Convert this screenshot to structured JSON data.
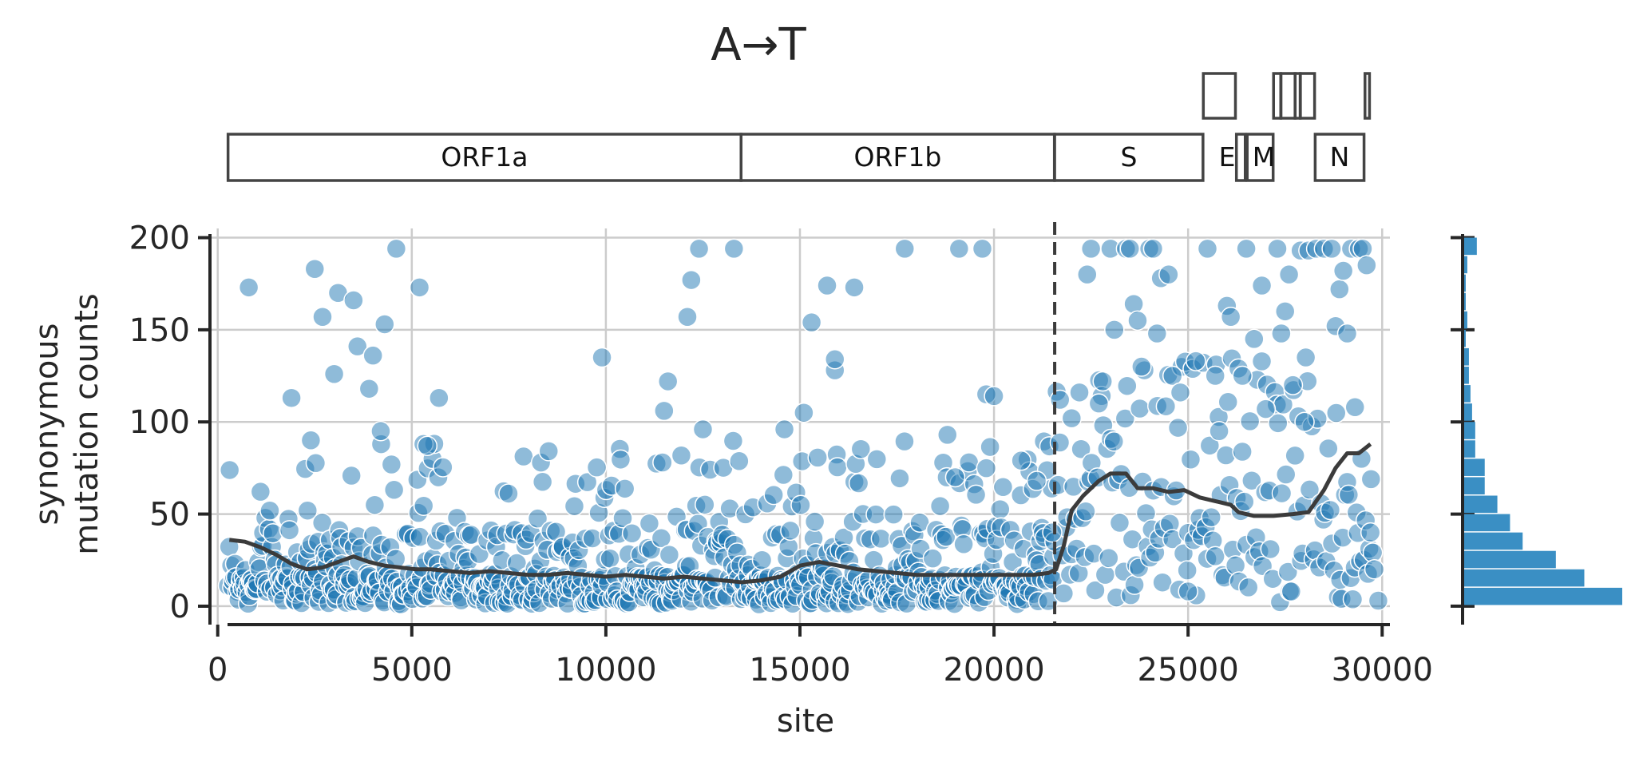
{
  "title": "A→T",
  "colors": {
    "point": "#1f77b4",
    "bar": "#3a8fc4",
    "line": "#3b3b3b",
    "grid": "#cccccc",
    "axis": "#262626",
    "genebox": "#444444"
  },
  "genes": {
    "boxes": [
      {
        "name": "ORF1a",
        "start": 266,
        "end": 13483,
        "label": "ORF1a"
      },
      {
        "name": "ORF1b",
        "start": 13483,
        "end": 21555,
        "label": "ORF1b"
      },
      {
        "name": "S",
        "start": 21563,
        "end": 25384,
        "label": "S"
      },
      {
        "name": "E",
        "start": 26245,
        "end": 26472,
        "label": "E"
      },
      {
        "name": "M",
        "start": 26523,
        "end": 27191,
        "label": "M"
      },
      {
        "name": "N",
        "start": 28274,
        "end": 29533,
        "label": "N"
      }
    ],
    "small_boxes": [
      {
        "start": 25393,
        "end": 26220
      },
      {
        "start": 27202,
        "end": 27387
      },
      {
        "start": 27394,
        "end": 27759
      },
      {
        "start": 27756,
        "end": 27887
      },
      {
        "start": 27894,
        "end": 28259
      },
      {
        "start": 29558,
        "end": 29674
      }
    ]
  },
  "chart_data": {
    "type": "scatter",
    "xlabel": "site",
    "ylabel_line1": "synonymous",
    "ylabel_line2": "mutation counts",
    "xlim": [
      -200,
      30200
    ],
    "ylim": [
      -10,
      205
    ],
    "clip_max": 194,
    "xticks": [
      0,
      5000,
      10000,
      15000,
      20000,
      25000,
      30000
    ],
    "xtick_labels": [
      "0",
      "5000",
      "10000",
      "15000",
      "20000",
      "25000",
      "30000"
    ],
    "yticks": [
      0,
      50,
      100,
      150,
      200
    ],
    "ytick_labels": [
      "0",
      "50",
      "100",
      "150",
      "200"
    ],
    "grid": true,
    "boundary_site": 21563,
    "outlier_points": [
      [
        800,
        173
      ],
      [
        2500,
        183
      ],
      [
        2700,
        157
      ],
      [
        3000,
        126
      ],
      [
        3100,
        170
      ],
      [
        3500,
        166
      ],
      [
        3600,
        141
      ],
      [
        3900,
        118
      ],
      [
        4000,
        136
      ],
      [
        4200,
        95
      ],
      [
        4300,
        153
      ],
      [
        4600,
        194
      ],
      [
        5200,
        173
      ],
      [
        5300,
        88
      ],
      [
        5400,
        87
      ],
      [
        5700,
        113
      ],
      [
        1900,
        113
      ],
      [
        2400,
        90
      ],
      [
        9900,
        135
      ],
      [
        11500,
        106
      ],
      [
        11600,
        122
      ],
      [
        12100,
        157
      ],
      [
        12200,
        177
      ],
      [
        12400,
        194
      ],
      [
        12500,
        96
      ],
      [
        13300,
        194
      ],
      [
        14600,
        96
      ],
      [
        15100,
        105
      ],
      [
        15300,
        154
      ],
      [
        15700,
        174
      ],
      [
        15900,
        128
      ],
      [
        15900,
        134
      ],
      [
        16400,
        173
      ],
      [
        17700,
        194
      ],
      [
        18800,
        93
      ],
      [
        19000,
        70
      ],
      [
        19100,
        194
      ],
      [
        19700,
        194
      ],
      [
        19800,
        115
      ],
      [
        20000,
        114
      ],
      [
        20700,
        79
      ],
      [
        21100,
        68
      ],
      [
        21500,
        40
      ],
      [
        21700,
        112
      ],
      [
        22000,
        102
      ],
      [
        22200,
        116
      ],
      [
        22400,
        180
      ],
      [
        22500,
        194
      ],
      [
        22700,
        110
      ],
      [
        22800,
        122
      ],
      [
        23000,
        194
      ],
      [
        23100,
        150
      ],
      [
        23400,
        194
      ],
      [
        23500,
        194
      ],
      [
        23600,
        164
      ],
      [
        23700,
        155
      ],
      [
        23800,
        130
      ],
      [
        24000,
        194
      ],
      [
        24100,
        194
      ],
      [
        24200,
        148
      ],
      [
        24300,
        178
      ],
      [
        24500,
        180
      ],
      [
        24600,
        125
      ],
      [
        24800,
        116
      ],
      [
        25000,
        8
      ],
      [
        25200,
        133
      ],
      [
        25500,
        194
      ],
      [
        25700,
        125
      ],
      [
        25800,
        95
      ],
      [
        26000,
        163
      ],
      [
        26100,
        157
      ],
      [
        26300,
        129
      ],
      [
        26400,
        125
      ],
      [
        26500,
        194
      ],
      [
        26700,
        145
      ],
      [
        26900,
        174
      ],
      [
        27000,
        107
      ],
      [
        27300,
        194
      ],
      [
        27400,
        148
      ],
      [
        27500,
        160
      ],
      [
        27600,
        180
      ],
      [
        27700,
        120
      ],
      [
        27900,
        193
      ],
      [
        28000,
        100
      ],
      [
        28100,
        193
      ],
      [
        28300,
        194
      ],
      [
        28500,
        194
      ],
      [
        28700,
        194
      ],
      [
        28800,
        152
      ],
      [
        28900,
        172
      ],
      [
        29000,
        182
      ],
      [
        29100,
        148
      ],
      [
        29200,
        194
      ],
      [
        29300,
        108
      ],
      [
        29400,
        194
      ],
      [
        29500,
        194
      ],
      [
        29600,
        185
      ],
      [
        29700,
        40
      ],
      [
        29800,
        20
      ],
      [
        29900,
        3
      ]
    ],
    "rolling_line": [
      [
        300,
        36
      ],
      [
        700,
        35
      ],
      [
        1100,
        32
      ],
      [
        1500,
        28
      ],
      [
        1900,
        23
      ],
      [
        2300,
        20
      ],
      [
        2700,
        21
      ],
      [
        3100,
        24
      ],
      [
        3500,
        27
      ],
      [
        3900,
        24
      ],
      [
        4300,
        22
      ],
      [
        4700,
        21
      ],
      [
        5100,
        20
      ],
      [
        5500,
        20
      ],
      [
        6000,
        19
      ],
      [
        6500,
        18
      ],
      [
        7000,
        19
      ],
      [
        7500,
        18
      ],
      [
        8000,
        17
      ],
      [
        8500,
        17
      ],
      [
        9000,
        18
      ],
      [
        9500,
        17
      ],
      [
        10000,
        16
      ],
      [
        10500,
        17
      ],
      [
        11000,
        16
      ],
      [
        11500,
        15
      ],
      [
        12000,
        16
      ],
      [
        12500,
        15
      ],
      [
        13000,
        14
      ],
      [
        13500,
        13
      ],
      [
        14000,
        14
      ],
      [
        14500,
        16
      ],
      [
        15000,
        22
      ],
      [
        15500,
        24
      ],
      [
        16000,
        22
      ],
      [
        16500,
        20
      ],
      [
        17000,
        19
      ],
      [
        17500,
        18
      ],
      [
        18000,
        17
      ],
      [
        18500,
        17
      ],
      [
        19000,
        17
      ],
      [
        19500,
        17
      ],
      [
        20000,
        17
      ],
      [
        20500,
        17
      ],
      [
        21000,
        17
      ],
      [
        21400,
        18
      ],
      [
        21600,
        20
      ],
      [
        21800,
        33
      ],
      [
        22000,
        52
      ],
      [
        22300,
        60
      ],
      [
        22700,
        68
      ],
      [
        23000,
        72
      ],
      [
        23400,
        72
      ],
      [
        23700,
        64
      ],
      [
        24100,
        64
      ],
      [
        24500,
        62
      ],
      [
        24900,
        63
      ],
      [
        25300,
        59
      ],
      [
        25700,
        57
      ],
      [
        26100,
        55
      ],
      [
        26300,
        51
      ],
      [
        26700,
        49
      ],
      [
        27200,
        49
      ],
      [
        27700,
        50
      ],
      [
        28100,
        51
      ],
      [
        28500,
        63
      ],
      [
        28800,
        75
      ],
      [
        29100,
        83
      ],
      [
        29400,
        83
      ],
      [
        29700,
        88
      ]
    ],
    "histogram": {
      "bins": [
        0,
        10,
        20,
        30,
        40,
        50,
        60,
        70,
        80,
        90,
        100,
        110,
        120,
        130,
        140,
        150,
        160,
        170,
        180,
        190
      ],
      "lengths": [
        1.0,
        0.76,
        0.58,
        0.37,
        0.29,
        0.21,
        0.13,
        0.13,
        0.07,
        0.07,
        0.05,
        0.04,
        0.03,
        0.03,
        0.01,
        0.02,
        0.01,
        0.01,
        0.02,
        0.08
      ]
    }
  }
}
